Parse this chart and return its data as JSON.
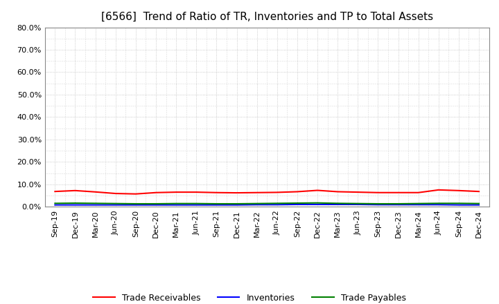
{
  "title": "[6566]  Trend of Ratio of TR, Inventories and TP to Total Assets",
  "x_labels": [
    "Sep-19",
    "Dec-19",
    "Mar-20",
    "Jun-20",
    "Sep-20",
    "Dec-20",
    "Mar-21",
    "Jun-21",
    "Sep-21",
    "Dec-21",
    "Mar-22",
    "Jun-22",
    "Sep-22",
    "Dec-22",
    "Mar-23",
    "Jun-23",
    "Sep-23",
    "Dec-23",
    "Mar-24",
    "Jun-24",
    "Sep-24",
    "Dec-24"
  ],
  "trade_receivables": [
    0.068,
    0.072,
    0.066,
    0.059,
    0.057,
    0.063,
    0.065,
    0.065,
    0.063,
    0.062,
    0.063,
    0.064,
    0.067,
    0.073,
    0.067,
    0.065,
    0.063,
    0.063,
    0.063,
    0.075,
    0.072,
    0.068
  ],
  "inventories": [
    0.008,
    0.008,
    0.008,
    0.008,
    0.008,
    0.008,
    0.008,
    0.008,
    0.008,
    0.008,
    0.009,
    0.009,
    0.01,
    0.01,
    0.01,
    0.01,
    0.009,
    0.009,
    0.009,
    0.009,
    0.008,
    0.008
  ],
  "trade_payables": [
    0.015,
    0.016,
    0.015,
    0.014,
    0.013,
    0.013,
    0.014,
    0.014,
    0.013,
    0.013,
    0.014,
    0.015,
    0.016,
    0.017,
    0.015,
    0.014,
    0.013,
    0.013,
    0.014,
    0.015,
    0.015,
    0.014
  ],
  "tr_color": "#FF0000",
  "inv_color": "#0000FF",
  "tp_color": "#008000",
  "ylim": [
    0.0,
    0.8
  ],
  "yticks": [
    0.0,
    0.1,
    0.2,
    0.3,
    0.4,
    0.5,
    0.6,
    0.7,
    0.8
  ],
  "background_color": "#FFFFFF",
  "plot_bg_color": "#FFFFFF",
  "grid_color": "#BBBBBB",
  "title_fontsize": 11,
  "tick_fontsize": 8,
  "legend_labels": [
    "Trade Receivables",
    "Inventories",
    "Trade Payables"
  ]
}
